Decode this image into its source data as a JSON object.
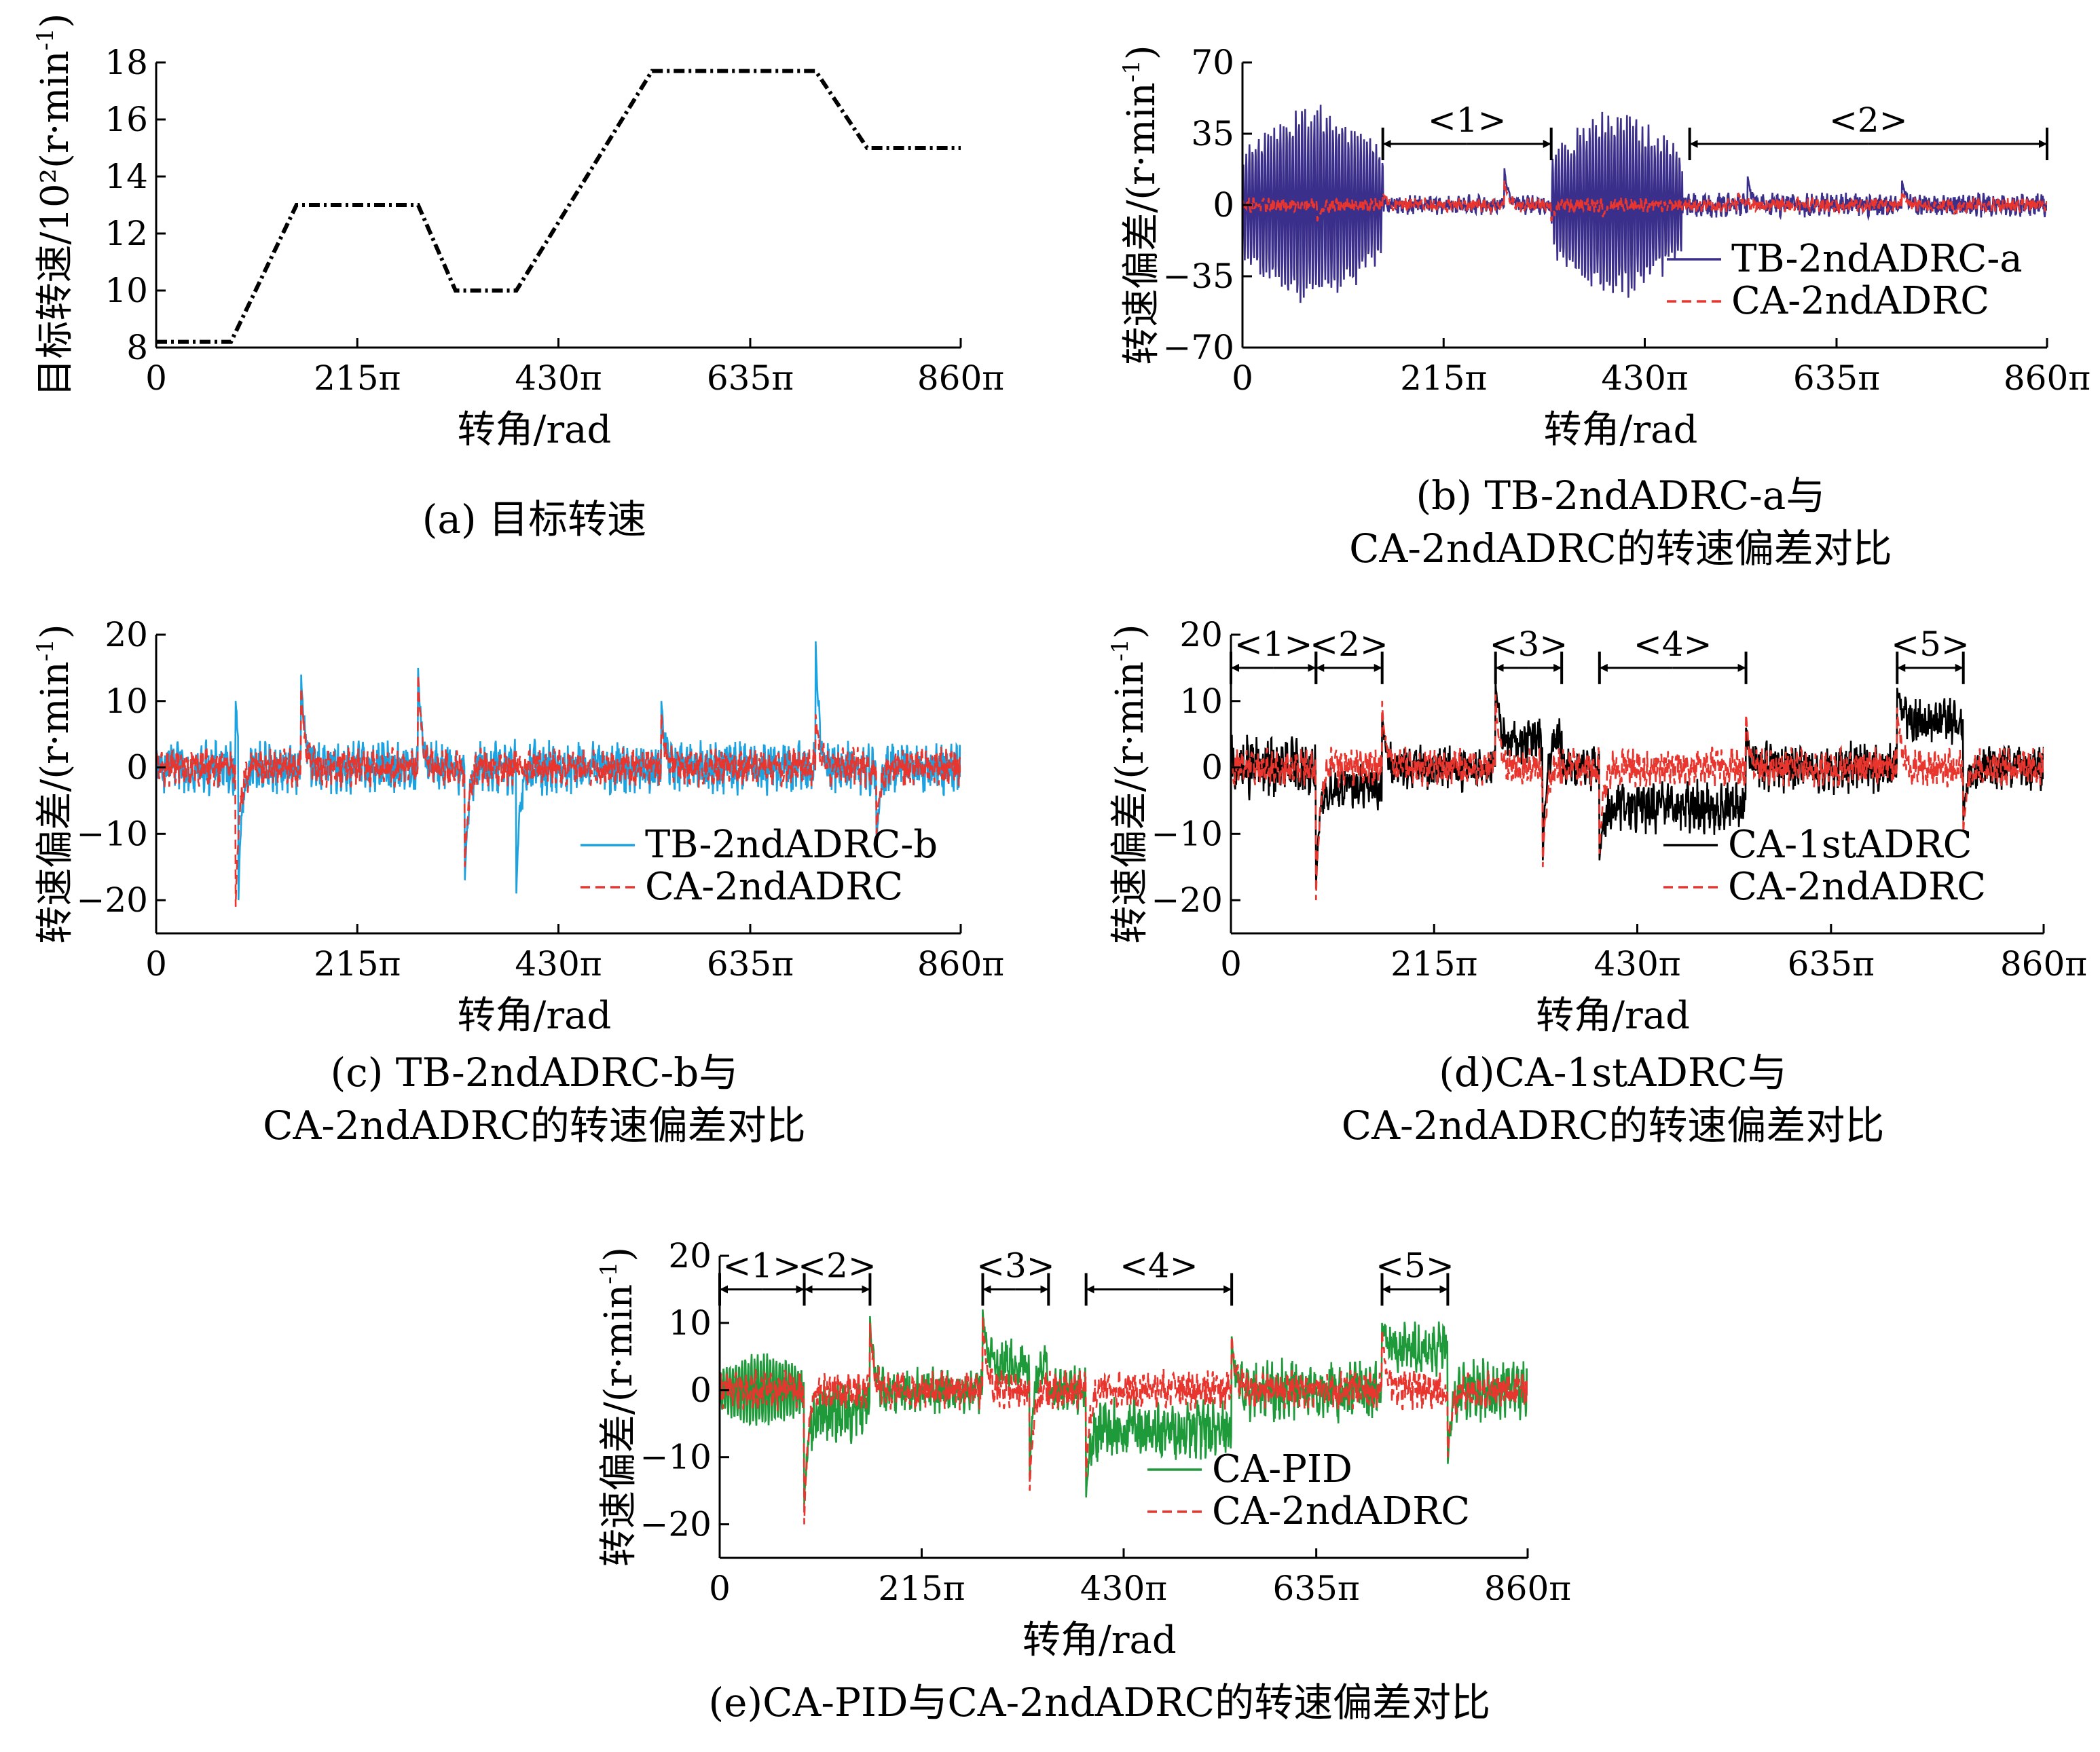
{
  "figure": {
    "unit_sup": "-1",
    "common_xlabel": "转角/rad",
    "x_tick_labels": [
      "0",
      "215π",
      "430π",
      "635π",
      "860π"
    ]
  },
  "chart_data": [
    {
      "id": "a",
      "type": "line",
      "caption": [
        "(a) 目标转速"
      ],
      "ylabel": "目标转速/10²(r·min",
      "ylabel_suffix": ")",
      "xlabel": "转角/rad",
      "xlim": [
        0,
        860
      ],
      "x_unit": "π rad",
      "ylim": [
        8,
        18
      ],
      "y_ticks": [
        8,
        10,
        12,
        14,
        16,
        18
      ],
      "x_ticks": [
        0,
        215,
        430,
        635,
        860
      ],
      "x_tick_labels": [
        "0",
        "215π",
        "430π",
        "635π",
        "860π"
      ],
      "series": [
        {
          "name": "目标转速",
          "color": "#000000",
          "style": "dashdot",
          "points": [
            [
              0,
              8.2
            ],
            [
              80,
              8.2
            ],
            [
              150,
              13
            ],
            [
              280,
              13
            ],
            [
              320,
              10
            ],
            [
              385,
              10
            ],
            [
              530,
              17.7
            ],
            [
              705,
              17.7
            ],
            [
              760,
              15
            ],
            [
              860,
              15
            ]
          ]
        }
      ],
      "annotations": [],
      "legend": []
    },
    {
      "id": "b",
      "type": "line",
      "caption": [
        "(b) TB-2ndADRC-a与",
        "CA-2ndADRC的转速偏差对比"
      ],
      "ylabel": "转速偏差/(r·min",
      "ylabel_suffix": ")",
      "xlabel": "转角/rad",
      "xlim": [
        0,
        860
      ],
      "ylim": [
        -70,
        70
      ],
      "y_ticks": [
        -70,
        -35,
        0,
        35,
        70
      ],
      "y_tick_labels": [
        "−70",
        "−35",
        "0",
        "35",
        "70"
      ],
      "x_ticks": [
        0,
        215,
        430,
        635,
        860
      ],
      "x_tick_labels": [
        "0",
        "215π",
        "430π",
        "635π",
        "860π"
      ],
      "series": [
        {
          "name": "TB-2ndADRC-a",
          "color": "#3b2f8c",
          "style": "solid",
          "segments": [
            {
              "x_start": 0,
              "x_end": 150,
              "amplitude": 50,
              "kind": "oscillation"
            },
            {
              "x_start": 150,
              "x_end": 330,
              "amplitude": 4,
              "kind": "noise"
            },
            {
              "x_start": 330,
              "x_end": 470,
              "amplitude": 48,
              "kind": "oscillation"
            },
            {
              "x_start": 470,
              "x_end": 860,
              "amplitude": 5,
              "kind": "noise"
            }
          ],
          "spikes": [
            [
              280,
              18
            ],
            [
              540,
              14
            ],
            [
              705,
              12
            ]
          ]
        },
        {
          "name": "CA-2ndADRC",
          "color": "#e8352e",
          "style": "dashed",
          "segments": [
            {
              "x_start": 0,
              "x_end": 860,
              "amplitude": 3,
              "kind": "noise"
            }
          ],
          "spikes": [
            [
              80,
              -8
            ],
            [
              150,
              6
            ],
            [
              280,
              12
            ],
            [
              330,
              -8
            ],
            [
              385,
              -6
            ],
            [
              530,
              6
            ],
            [
              705,
              7
            ],
            [
              760,
              -5
            ]
          ]
        }
      ],
      "annotations": [
        {
          "label": "<1>",
          "x_start": 150,
          "x_end": 330,
          "y": 30
        },
        {
          "label": "<2>",
          "x_start": 478,
          "x_end": 860,
          "y": 30
        }
      ],
      "legend": [
        "TB-2ndADRC-a",
        "CA-2ndADRC"
      ],
      "legend_position": "bottom-right"
    },
    {
      "id": "c",
      "type": "line",
      "caption": [
        "(c) TB-2ndADRC-b与",
        "CA-2ndADRC的转速偏差对比"
      ],
      "ylabel": "转速偏差/(r·min",
      "ylabel_suffix": ")",
      "xlabel": "转角/rad",
      "xlim": [
        0,
        860
      ],
      "ylim": [
        -25,
        20
      ],
      "y_ticks": [
        -20,
        -10,
        0,
        10,
        20
      ],
      "y_tick_labels": [
        "−20",
        "−10",
        "0",
        "10",
        "20"
      ],
      "x_ticks": [
        0,
        215,
        430,
        635,
        860
      ],
      "x_tick_labels": [
        "0",
        "215π",
        "430π",
        "635π",
        "860π"
      ],
      "series": [
        {
          "name": "TB-2ndADRC-b",
          "color": "#1aa3e0",
          "style": "solid",
          "segments": [
            {
              "x_start": 0,
              "x_end": 860,
              "amplitude": 3.5,
              "kind": "noise"
            }
          ],
          "spikes": [
            [
              85,
              10
            ],
            [
              88,
              -20
            ],
            [
              155,
              14
            ],
            [
              280,
              15
            ],
            [
              330,
              -17
            ],
            [
              385,
              -19
            ],
            [
              540,
              10
            ],
            [
              705,
              19
            ],
            [
              770,
              -12
            ]
          ]
        },
        {
          "name": "CA-2ndADRC",
          "color": "#e8352e",
          "style": "dashed",
          "segments": [
            {
              "x_start": 0,
              "x_end": 860,
              "amplitude": 2.5,
              "kind": "noise"
            }
          ],
          "spikes": [
            [
              85,
              -21
            ],
            [
              155,
              12
            ],
            [
              280,
              14
            ],
            [
              330,
              -15
            ],
            [
              540,
              8
            ],
            [
              705,
              8
            ],
            [
              770,
              -10
            ]
          ]
        }
      ],
      "annotations": [],
      "legend": [
        "TB-2ndADRC-b",
        "CA-2ndADRC"
      ],
      "legend_position": "bottom-right"
    },
    {
      "id": "d",
      "type": "line",
      "caption": [
        "(d)CA-1stADRC与",
        "CA-2ndADRC的转速偏差对比"
      ],
      "ylabel": "转速偏差/(r·min",
      "ylabel_suffix": ")",
      "xlabel": "转角/rad",
      "xlim": [
        0,
        860
      ],
      "ylim": [
        -25,
        20
      ],
      "y_ticks": [
        -20,
        -10,
        0,
        10,
        20
      ],
      "y_tick_labels": [
        "−20",
        "−10",
        "0",
        "10",
        "20"
      ],
      "x_ticks": [
        0,
        215,
        430,
        635,
        860
      ],
      "x_tick_labels": [
        "0",
        "215π",
        "430π",
        "635π",
        "860π"
      ],
      "series": [
        {
          "name": "CA-1stADRC",
          "color": "#000000",
          "style": "solid",
          "segments": [
            {
              "x_start": 0,
              "x_end": 90,
              "amplitude": 4,
              "kind": "noise"
            },
            {
              "x_start": 90,
              "x_end": 160,
              "amplitude": 3,
              "kind": "noise",
              "offset": -3
            },
            {
              "x_start": 160,
              "x_end": 280,
              "amplitude": 3,
              "kind": "noise"
            },
            {
              "x_start": 280,
              "x_end": 350,
              "amplitude": 3,
              "kind": "noise",
              "offset": 4
            },
            {
              "x_start": 350,
              "x_end": 390,
              "amplitude": 3,
              "kind": "noise"
            },
            {
              "x_start": 390,
              "x_end": 545,
              "amplitude": 3.5,
              "kind": "noise",
              "offset": -6
            },
            {
              "x_start": 545,
              "x_end": 705,
              "amplitude": 3.5,
              "kind": "noise"
            },
            {
              "x_start": 705,
              "x_end": 775,
              "amplitude": 3,
              "kind": "noise",
              "offset": 7
            },
            {
              "x_start": 775,
              "x_end": 860,
              "amplitude": 3,
              "kind": "noise"
            }
          ],
          "spikes": [
            [
              90,
              -18
            ],
            [
              160,
              8
            ],
            [
              280,
              13
            ],
            [
              330,
              -14
            ],
            [
              390,
              -14
            ],
            [
              545,
              6
            ],
            [
              705,
              12
            ],
            [
              775,
              -8
            ]
          ]
        },
        {
          "name": "CA-2ndADRC",
          "color": "#e8352e",
          "style": "dashed",
          "segments": [
            {
              "x_start": 0,
              "x_end": 860,
              "amplitude": 2.5,
              "kind": "noise"
            }
          ],
          "spikes": [
            [
              90,
              -20
            ],
            [
              160,
              10
            ],
            [
              280,
              11
            ],
            [
              330,
              -15
            ],
            [
              390,
              -13
            ],
            [
              545,
              8
            ],
            [
              705,
              9
            ],
            [
              775,
              -10
            ]
          ]
        }
      ],
      "annotations": [
        {
          "label": "<1>",
          "x_start": 0,
          "x_end": 90,
          "y": 15
        },
        {
          "label": "<2>",
          "x_start": 90,
          "x_end": 160,
          "y": 15
        },
        {
          "label": "<3>",
          "x_start": 280,
          "x_end": 350,
          "y": 15
        },
        {
          "label": "<4>",
          "x_start": 390,
          "x_end": 545,
          "y": 15
        },
        {
          "label": "<5>",
          "x_start": 705,
          "x_end": 775,
          "y": 15
        }
      ],
      "legend": [
        "CA-1stADRC",
        "CA-2ndADRC"
      ],
      "legend_position": "bottom-right"
    },
    {
      "id": "e",
      "type": "line",
      "caption": [
        "(e)CA-PID与CA-2ndADRC的转速偏差对比"
      ],
      "ylabel": "转速偏差/(r·min",
      "ylabel_suffix": ")",
      "xlabel": "转角/rad",
      "xlim": [
        0,
        860
      ],
      "ylim": [
        -25,
        20
      ],
      "y_ticks": [
        -20,
        -10,
        0,
        10,
        20
      ],
      "y_tick_labels": [
        "−20",
        "−10",
        "0",
        "10",
        "20"
      ],
      "x_ticks": [
        0,
        215,
        430,
        635,
        860
      ],
      "x_tick_labels": [
        "0",
        "215π",
        "430π",
        "635π",
        "860π"
      ],
      "series": [
        {
          "name": "CA-PID",
          "color": "#1f9a3a",
          "style": "solid",
          "segments": [
            {
              "x_start": 0,
              "x_end": 90,
              "amplitude": 6,
              "kind": "oscillation"
            },
            {
              "x_start": 90,
              "x_end": 160,
              "amplitude": 4,
              "kind": "noise",
              "offset": -3
            },
            {
              "x_start": 160,
              "x_end": 280,
              "amplitude": 3,
              "kind": "noise"
            },
            {
              "x_start": 280,
              "x_end": 350,
              "amplitude": 3,
              "kind": "noise",
              "offset": 4
            },
            {
              "x_start": 350,
              "x_end": 390,
              "amplitude": 3,
              "kind": "noise"
            },
            {
              "x_start": 390,
              "x_end": 545,
              "amplitude": 4,
              "kind": "noise",
              "offset": -6
            },
            {
              "x_start": 545,
              "x_end": 705,
              "amplitude": 4,
              "kind": "noise"
            },
            {
              "x_start": 705,
              "x_end": 775,
              "amplitude": 3.5,
              "kind": "noise",
              "offset": 6
            },
            {
              "x_start": 775,
              "x_end": 860,
              "amplitude": 4,
              "kind": "noise"
            }
          ],
          "spikes": [
            [
              90,
              -17
            ],
            [
              160,
              11
            ],
            [
              280,
              12
            ],
            [
              330,
              -13
            ],
            [
              390,
              -16
            ],
            [
              545,
              8
            ],
            [
              705,
              10
            ],
            [
              775,
              -11
            ]
          ]
        },
        {
          "name": "CA-2ndADRC",
          "color": "#e8352e",
          "style": "dashed",
          "segments": [
            {
              "x_start": 0,
              "x_end": 860,
              "amplitude": 2.5,
              "kind": "noise"
            }
          ],
          "spikes": [
            [
              90,
              -20
            ],
            [
              160,
              10
            ],
            [
              280,
              11
            ],
            [
              330,
              -15
            ],
            [
              390,
              -13
            ],
            [
              545,
              8
            ],
            [
              705,
              9
            ],
            [
              775,
              -10
            ]
          ]
        }
      ],
      "annotations": [
        {
          "label": "<1>",
          "x_start": 0,
          "x_end": 90,
          "y": 15
        },
        {
          "label": "<2>",
          "x_start": 90,
          "x_end": 160,
          "y": 15
        },
        {
          "label": "<3>",
          "x_start": 280,
          "x_end": 350,
          "y": 15
        },
        {
          "label": "<4>",
          "x_start": 390,
          "x_end": 545,
          "y": 15
        },
        {
          "label": "<5>",
          "x_start": 705,
          "x_end": 775,
          "y": 15
        }
      ],
      "legend": [
        "CA-PID",
        "CA-2ndADRC"
      ],
      "legend_position": "bottom-right"
    }
  ]
}
